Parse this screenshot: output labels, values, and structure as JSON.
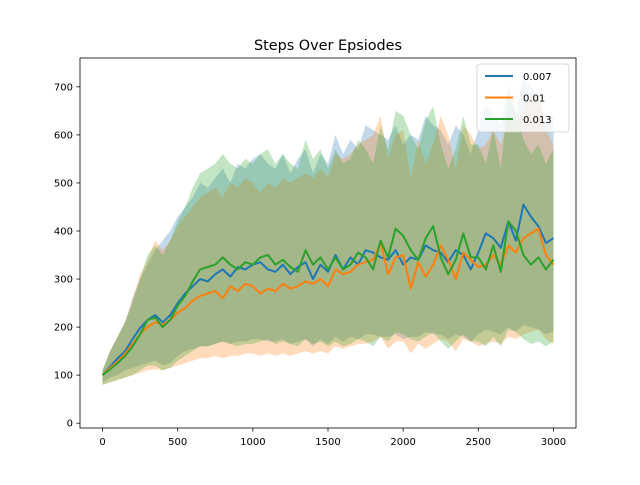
{
  "chart_data": {
    "type": "line",
    "title": "Steps Over Epsiodes",
    "xlabel": "",
    "ylabel": "",
    "xlim": [
      -150,
      3150
    ],
    "ylim": [
      -10,
      760
    ],
    "xticks": [
      0,
      500,
      1000,
      1500,
      2000,
      2500,
      3000
    ],
    "yticks": [
      0,
      100,
      200,
      300,
      400,
      500,
      600,
      700
    ],
    "grid": false,
    "legend_position": "top-right",
    "shaded_band": "fluctuating min-max range around each series, semi-transparent",
    "x": [
      0,
      50,
      100,
      150,
      200,
      250,
      300,
      350,
      400,
      450,
      500,
      550,
      600,
      650,
      700,
      750,
      800,
      850,
      900,
      950,
      1000,
      1050,
      1100,
      1150,
      1200,
      1250,
      1300,
      1350,
      1400,
      1450,
      1500,
      1550,
      1600,
      1650,
      1700,
      1750,
      1800,
      1850,
      1900,
      1950,
      2000,
      2050,
      2100,
      2150,
      2200,
      2250,
      2300,
      2350,
      2400,
      2450,
      2500,
      2550,
      2600,
      2650,
      2700,
      2750,
      2800,
      2850,
      2900,
      2950,
      3000
    ],
    "series": [
      {
        "name": "0.007",
        "color": "#1f77b4",
        "values": [
          100,
          118,
          135,
          150,
          175,
          198,
          215,
          225,
          210,
          225,
          250,
          270,
          285,
          300,
          295,
          310,
          320,
          305,
          325,
          320,
          330,
          335,
          320,
          315,
          330,
          310,
          325,
          335,
          300,
          330,
          315,
          350,
          320,
          345,
          330,
          360,
          355,
          345,
          340,
          360,
          330,
          345,
          340,
          370,
          360,
          355,
          335,
          360,
          350,
          320,
          355,
          395,
          385,
          365,
          420,
          380,
          455,
          430,
          410,
          375,
          385
        ],
        "band_low": [
          85,
          95,
          100,
          110,
          115,
          120,
          125,
          130,
          120,
          125,
          140,
          150,
          155,
          160,
          160,
          165,
          170,
          165,
          170,
          170,
          175,
          175,
          170,
          170,
          175,
          165,
          170,
          175,
          160,
          175,
          165,
          180,
          170,
          180,
          175,
          185,
          185,
          180,
          180,
          185,
          175,
          180,
          180,
          190,
          185,
          185,
          175,
          185,
          180,
          170,
          185,
          195,
          190,
          185,
          200,
          190,
          205,
          200,
          195,
          185,
          190
        ],
        "band_high": [
          110,
          150,
          180,
          210,
          260,
          300,
          330,
          360,
          380,
          400,
          430,
          450,
          470,
          500,
          490,
          510,
          530,
          500,
          540,
          530,
          550,
          560,
          540,
          530,
          560,
          520,
          550,
          570,
          520,
          560,
          540,
          600,
          560,
          590,
          570,
          620,
          610,
          600,
          590,
          620,
          580,
          600,
          590,
          640,
          620,
          610,
          580,
          620,
          600,
          560,
          610,
          660,
          650,
          620,
          700,
          640,
          720,
          700,
          680,
          620,
          640
        ]
      },
      {
        "name": "0.01",
        "color": "#ff7f0e",
        "values": [
          100,
          115,
          128,
          145,
          165,
          185,
          200,
          210,
          205,
          215,
          230,
          240,
          255,
          265,
          270,
          275,
          260,
          285,
          275,
          290,
          285,
          270,
          280,
          275,
          290,
          280,
          285,
          295,
          290,
          300,
          285,
          320,
          310,
          315,
          330,
          335,
          340,
          375,
          310,
          345,
          350,
          280,
          335,
          305,
          330,
          370,
          340,
          300,
          355,
          340,
          325,
          330,
          350,
          330,
          370,
          355,
          385,
          395,
          405,
          350,
          330
        ],
        "band_low": [
          80,
          85,
          90,
          95,
          100,
          105,
          110,
          112,
          110,
          115,
          120,
          125,
          130,
          135,
          135,
          140,
          135,
          140,
          140,
          145,
          145,
          140,
          145,
          140,
          145,
          140,
          145,
          150,
          145,
          150,
          145,
          160,
          155,
          160,
          165,
          165,
          170,
          180,
          155,
          170,
          170,
          145,
          165,
          155,
          165,
          175,
          170,
          150,
          175,
          170,
          160,
          165,
          170,
          165,
          180,
          175,
          185,
          190,
          195,
          175,
          165
        ],
        "band_high": [
          110,
          150,
          180,
          210,
          260,
          310,
          340,
          380,
          360,
          380,
          410,
          430,
          450,
          470,
          480,
          490,
          470,
          500,
          490,
          510,
          500,
          480,
          500,
          490,
          510,
          500,
          510,
          520,
          510,
          530,
          510,
          560,
          550,
          560,
          580,
          590,
          600,
          640,
          550,
          600,
          610,
          510,
          590,
          540,
          580,
          640,
          600,
          530,
          620,
          600,
          570,
          580,
          610,
          580,
          640,
          620,
          660,
          680,
          690,
          610,
          580
        ]
      },
      {
        "name": "0.013",
        "color": "#2ca02c",
        "values": [
          100,
          112,
          125,
          140,
          160,
          185,
          215,
          220,
          200,
          215,
          245,
          265,
          295,
          320,
          325,
          330,
          345,
          330,
          320,
          335,
          330,
          345,
          350,
          330,
          340,
          325,
          315,
          360,
          330,
          345,
          320,
          345,
          320,
          330,
          355,
          345,
          320,
          380,
          345,
          405,
          390,
          360,
          340,
          385,
          410,
          345,
          310,
          340,
          395,
          345,
          345,
          320,
          370,
          315,
          420,
          400,
          350,
          330,
          345,
          320,
          340
        ],
        "band_low": [
          80,
          85,
          90,
          95,
          100,
          110,
          120,
          120,
          110,
          115,
          130,
          140,
          150,
          160,
          160,
          165,
          170,
          165,
          160,
          165,
          165,
          170,
          175,
          165,
          170,
          165,
          160,
          175,
          165,
          170,
          160,
          170,
          160,
          165,
          175,
          170,
          160,
          180,
          170,
          190,
          185,
          175,
          170,
          180,
          190,
          170,
          155,
          170,
          185,
          170,
          170,
          160,
          180,
          160,
          195,
          190,
          175,
          165,
          170,
          160,
          170
        ],
        "band_high": [
          110,
          150,
          180,
          210,
          250,
          300,
          350,
          370,
          350,
          380,
          420,
          450,
          490,
          520,
          530,
          540,
          560,
          540,
          530,
          550,
          540,
          560,
          570,
          540,
          560,
          540,
          530,
          590,
          550,
          570,
          530,
          570,
          540,
          550,
          590,
          570,
          540,
          620,
          570,
          650,
          640,
          600,
          570,
          630,
          660,
          580,
          530,
          570,
          640,
          580,
          580,
          540,
          610,
          530,
          680,
          650,
          590,
          560,
          580,
          540,
          570
        ]
      }
    ]
  }
}
